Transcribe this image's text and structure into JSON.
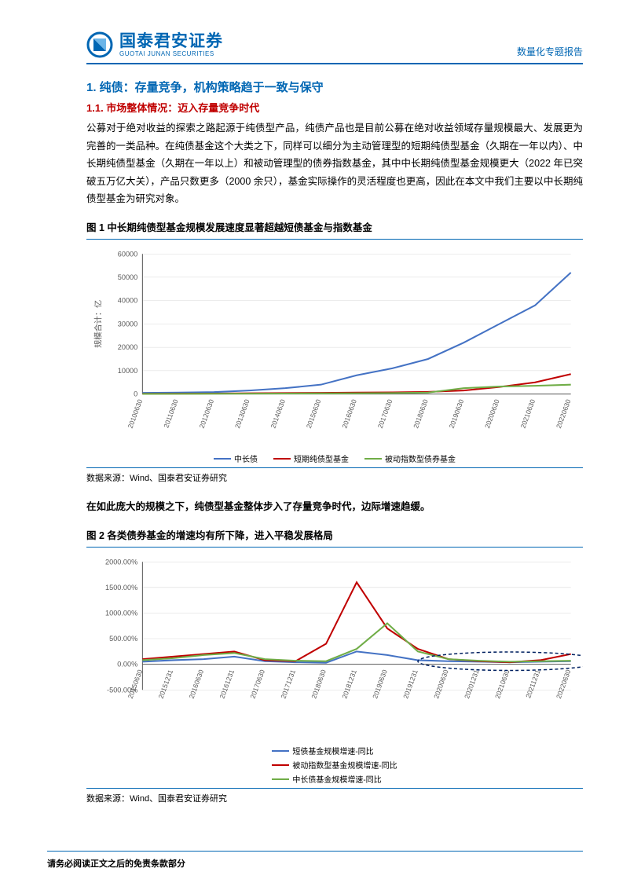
{
  "header": {
    "logo_cn": "国泰君安证券",
    "logo_en": "GUOTAI JUNAN SECURITIES",
    "right": "数量化专题报告",
    "accent_color": "#0066b3"
  },
  "section1": {
    "h1": "1. 纯债：存量竞争，机构策略趋于一致与保守",
    "h2": "1.1. 市场整体情况：迈入存量竞争时代",
    "para1": "公募对于绝对收益的探索之路起源于纯债型产品，纯债产品也是目前公募在绝对收益领域存量规模最大、发展更为完善的一类品种。在纯债基金这个大类之下，同样可以细分为主动管理型的短期纯债型基金（久期在一年以内）、中长期纯债型基金（久期在一年以上）和被动管理型的债券指数基金，其中中长期纯债型基金规模更大（2022 年已突破五万亿大关），产品只数更多（2000 余只），基金实际操作的灵活程度也更高，因此在本文中我们主要以中长期纯债型基金为研究对象。"
  },
  "fig1": {
    "title": "图 1 中长期纯债型基金规模发展速度显著超越短债基金与指数基金",
    "source": "数据来源：Wind、国泰君安证券研究",
    "type": "line",
    "y_label": "规模合计：亿",
    "x_labels": [
      "20100630",
      "20110630",
      "20120630",
      "20130630",
      "20140630",
      "20150630",
      "20160630",
      "20170630",
      "20180630",
      "20190630",
      "20200630",
      "20210630",
      "20220630"
    ],
    "y_ticks": [
      0,
      10000,
      20000,
      30000,
      40000,
      50000,
      60000
    ],
    "ylim": [
      0,
      60000
    ],
    "series": [
      {
        "name": "中长债",
        "color": "#4472c4",
        "values": [
          500,
          600,
          800,
          1500,
          2500,
          4000,
          8000,
          11000,
          15000,
          22000,
          30000,
          38000,
          52000
        ]
      },
      {
        "name": "短期纯债型基金",
        "color": "#c00000",
        "values": [
          100,
          150,
          200,
          300,
          400,
          500,
          600,
          700,
          900,
          1500,
          3000,
          5000,
          8500
        ]
      },
      {
        "name": "被动指数型债券基金",
        "color": "#70ad47",
        "values": [
          50,
          80,
          100,
          150,
          200,
          250,
          300,
          400,
          600,
          2500,
          3200,
          3500,
          4000
        ]
      }
    ],
    "background_color": "#ffffff",
    "grid_color": "#d9d9d9",
    "axis_color": "#595959",
    "line_width": 2
  },
  "mid_para": "在如此庞大的规模之下，纯债型基金整体步入了存量竞争时代，边际增速趋缓。",
  "fig2": {
    "title": "图 2 各类债券基金的增速均有所下降，进入平稳发展格局",
    "source": "数据来源：Wind、国泰君安证券研究",
    "type": "line",
    "x_labels": [
      "20150630",
      "20151231",
      "20160630",
      "20161231",
      "20170630",
      "20171231",
      "20180630",
      "20181231",
      "20190630",
      "20191231",
      "20200630",
      "20201231",
      "20210630",
      "20211231",
      "20220630"
    ],
    "y_ticks_pct": [
      -500,
      0,
      500,
      1000,
      1500,
      2000
    ],
    "ylim": [
      -500,
      2000
    ],
    "series": [
      {
        "name": "短债基金规模增速-同比",
        "color": "#4472c4",
        "values": [
          50,
          80,
          100,
          150,
          60,
          40,
          30,
          250,
          180,
          80,
          60,
          50,
          40,
          50,
          60
        ]
      },
      {
        "name": "被动指数型基金规模增速-同比",
        "color": "#c00000",
        "values": [
          100,
          150,
          200,
          250,
          80,
          60,
          400,
          1600,
          700,
          300,
          100,
          60,
          40,
          80,
          200
        ]
      },
      {
        "name": "中长债基金规模增速-同比",
        "color": "#70ad47",
        "values": [
          80,
          120,
          180,
          220,
          100,
          70,
          60,
          300,
          800,
          250,
          100,
          70,
          50,
          60,
          70
        ]
      }
    ],
    "highlight_ellipse": {
      "color": "#002060",
      "dash": "4 3",
      "cx_idx": 12,
      "rx_idx": 3,
      "cy_pct": 60,
      "ry_pct": 180
    },
    "background_color": "#ffffff",
    "grid_color": "#d9d9d9",
    "axis_color": "#595959",
    "line_width": 2
  },
  "footer": {
    "text": "请务必阅读正文之后的免责条款部分"
  }
}
